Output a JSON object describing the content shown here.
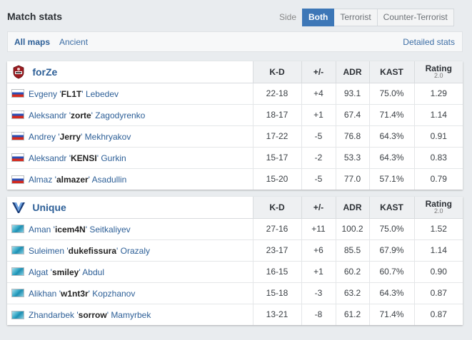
{
  "header": {
    "title": "Match stats",
    "side_label": "Side",
    "side_options": [
      "Both",
      "Terrorist",
      "Counter-Terrorist"
    ]
  },
  "filters": {
    "maps": [
      "All maps",
      "Ancient"
    ],
    "detailed_stats": "Detailed stats"
  },
  "columns": {
    "kd": "K-D",
    "plusminus": "+/-",
    "adr": "ADR",
    "kast": "KAST",
    "rating": "Rating",
    "rating_version": "2.0"
  },
  "teams": [
    {
      "name": "forZe",
      "logo_icon": "forze-logo-icon",
      "players": [
        {
          "first": "Evgeny '",
          "nick": "FL1T",
          "last": "' Lebedev",
          "flag": "russia-flag-icon",
          "kd": "22-18",
          "pm": "+4",
          "adr": "93.1",
          "kast": "75.0%",
          "rating": "1.29"
        },
        {
          "first": "Aleksandr '",
          "nick": "zorte",
          "last": "' Zagodyrenko",
          "flag": "russia-flag-icon",
          "kd": "18-17",
          "pm": "+1",
          "adr": "67.4",
          "kast": "71.4%",
          "rating": "1.14"
        },
        {
          "first": "Andrey '",
          "nick": "Jerry",
          "last": "' Mekhryakov",
          "flag": "russia-flag-icon",
          "kd": "17-22",
          "pm": "-5",
          "adr": "76.8",
          "kast": "64.3%",
          "rating": "0.91"
        },
        {
          "first": "Aleksandr '",
          "nick": "KENSI",
          "last": "' Gurkin",
          "flag": "russia-flag-icon",
          "kd": "15-17",
          "pm": "-2",
          "adr": "53.3",
          "kast": "64.3%",
          "rating": "0.83"
        },
        {
          "first": "Almaz '",
          "nick": "almazer",
          "last": "' Asadullin",
          "flag": "russia-flag-icon",
          "kd": "15-20",
          "pm": "-5",
          "adr": "77.0",
          "kast": "57.1%",
          "rating": "0.79"
        }
      ]
    },
    {
      "name": "Unique",
      "logo_icon": "unique-logo-icon",
      "players": [
        {
          "first": "Aman '",
          "nick": "icem4N",
          "last": "' Seitkaliyev",
          "flag": "kazakhstan-flag-icon",
          "kd": "27-16",
          "pm": "+11",
          "adr": "100.2",
          "kast": "75.0%",
          "rating": "1.52"
        },
        {
          "first": "Suleimen '",
          "nick": "dukefissura",
          "last": "' Orazaly",
          "flag": "kazakhstan-flag-icon",
          "kd": "23-17",
          "pm": "+6",
          "adr": "85.5",
          "kast": "67.9%",
          "rating": "1.14"
        },
        {
          "first": "Algat '",
          "nick": "smiley",
          "last": "' Abdul",
          "flag": "kazakhstan-flag-icon",
          "kd": "16-15",
          "pm": "+1",
          "adr": "60.2",
          "kast": "60.7%",
          "rating": "0.90"
        },
        {
          "first": "Alikhan '",
          "nick": "w1nt3r",
          "last": "' Kopzhanov",
          "flag": "kazakhstan-flag-icon",
          "kd": "15-18",
          "pm": "-3",
          "adr": "63.2",
          "kast": "64.3%",
          "rating": "0.87"
        },
        {
          "first": "Zhandarbek '",
          "nick": "sorrow",
          "last": "' Mamyrbek",
          "flag": "kazakhstan-flag-icon",
          "kd": "13-21",
          "pm": "-8",
          "adr": "61.2",
          "kast": "71.4%",
          "rating": "0.87"
        }
      ]
    }
  ],
  "colors": {
    "accent": "#3d77b7",
    "link": "#2d5f97",
    "positive": "#3e9b3e",
    "negative": "#d23b3b"
  }
}
